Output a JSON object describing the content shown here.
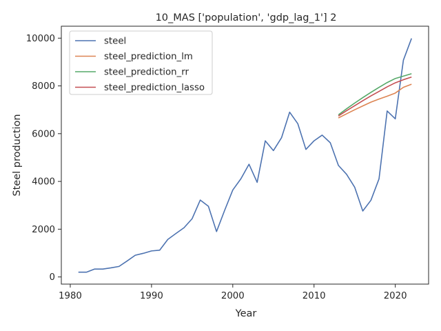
{
  "chart_data": {
    "type": "line",
    "title": "10_MAS ['population', 'gdp_lag_1'] 2",
    "xlabel": "Year",
    "ylabel": "Steel production",
    "xlim": [
      1978.9,
      2024.1
    ],
    "ylim": [
      -300,
      10500
    ],
    "xticks": [
      1980,
      1990,
      2000,
      2010,
      2020
    ],
    "yticks": [
      0,
      2000,
      4000,
      6000,
      8000,
      10000
    ],
    "grid": false,
    "legend_position": "top-left",
    "series": [
      {
        "name": "steel",
        "color": "#4c72b0",
        "x": [
          1981,
          1982,
          1983,
          1984,
          1985,
          1986,
          1987,
          1988,
          1989,
          1990,
          1991,
          1992,
          1993,
          1994,
          1995,
          1996,
          1997,
          1998,
          1999,
          2000,
          2001,
          2002,
          2003,
          2004,
          2005,
          2006,
          2007,
          2008,
          2009,
          2010,
          2011,
          2012,
          2013,
          2014,
          2015,
          2016,
          2017,
          2018,
          2019,
          2020,
          2021,
          2022
        ],
        "y": [
          200,
          200,
          330,
          330,
          380,
          440,
          670,
          910,
          990,
          1090,
          1120,
          1570,
          1820,
          2060,
          2440,
          3220,
          2960,
          1900,
          2790,
          3640,
          4110,
          4720,
          3960,
          5700,
          5290,
          5830,
          6900,
          6420,
          5340,
          5700,
          5940,
          5620,
          4670,
          4300,
          3760,
          2760,
          3210,
          4110,
          6950,
          6620,
          9080,
          9990
        ]
      },
      {
        "name": "steel_prediction_lm",
        "color": "#dd8452",
        "x": [
          2013,
          2014,
          2015,
          2016,
          2017,
          2018,
          2019,
          2020,
          2021,
          2022
        ],
        "y": [
          6660,
          6830,
          7000,
          7160,
          7320,
          7450,
          7570,
          7700,
          7940,
          8070
        ]
      },
      {
        "name": "steel_prediction_rr",
        "color": "#55a868",
        "x": [
          2013,
          2014,
          2015,
          2016,
          2017,
          2018,
          2019,
          2020,
          2021,
          2022
        ],
        "y": [
          6790,
          7040,
          7280,
          7510,
          7730,
          7940,
          8140,
          8310,
          8410,
          8510
        ]
      },
      {
        "name": "steel_prediction_lasso",
        "color": "#c44e52",
        "x": [
          2013,
          2014,
          2015,
          2016,
          2017,
          2018,
          2019,
          2020,
          2021,
          2022
        ],
        "y": [
          6740,
          6960,
          7170,
          7380,
          7580,
          7770,
          7960,
          8130,
          8260,
          8370
        ]
      }
    ]
  }
}
